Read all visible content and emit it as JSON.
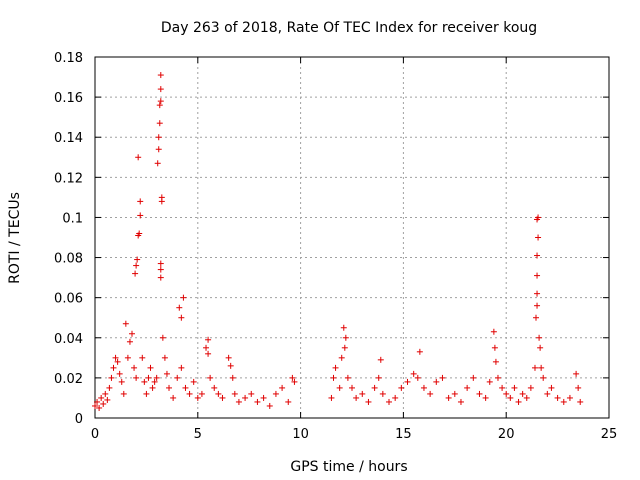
{
  "chart_data": {
    "type": "scatter",
    "title": "Day 263 of 2018, Rate Of TEC Index for receiver koug",
    "xlabel": "GPS time / hours",
    "ylabel": "ROTI / TECUs",
    "xlim": [
      0,
      25
    ],
    "ylim": [
      0,
      0.18
    ],
    "x_ticks": [
      0,
      5,
      10,
      15,
      20,
      25
    ],
    "x_tick_labels": [
      "0",
      "5",
      "10",
      "15",
      "20",
      "25"
    ],
    "y_ticks": [
      0,
      0.02,
      0.04,
      0.06,
      0.08,
      0.1,
      0.12,
      0.14,
      0.16,
      0.18
    ],
    "y_tick_labels": [
      "0",
      "0.02",
      "0.04",
      "0.06",
      "0.08",
      "0.1",
      "0.12",
      "0.14",
      "0.16",
      "0.18"
    ],
    "grid": true,
    "marker": "+",
    "marker_color": "#e00000",
    "series": [
      {
        "name": "ROTI",
        "points": [
          [
            0.0,
            0.006
          ],
          [
            0.1,
            0.008
          ],
          [
            0.2,
            0.005
          ],
          [
            0.3,
            0.01
          ],
          [
            0.4,
            0.007
          ],
          [
            0.5,
            0.012
          ],
          [
            0.6,
            0.009
          ],
          [
            0.7,
            0.015
          ],
          [
            0.8,
            0.02
          ],
          [
            0.9,
            0.025
          ],
          [
            1.0,
            0.03
          ],
          [
            1.1,
            0.028
          ],
          [
            1.2,
            0.022
          ],
          [
            1.3,
            0.018
          ],
          [
            1.4,
            0.012
          ],
          [
            1.5,
            0.047
          ],
          [
            1.6,
            0.03
          ],
          [
            1.7,
            0.038
          ],
          [
            1.8,
            0.042
          ],
          [
            1.9,
            0.025
          ],
          [
            2.0,
            0.02
          ],
          [
            1.95,
            0.072
          ],
          [
            2.0,
            0.076
          ],
          [
            2.05,
            0.079
          ],
          [
            2.1,
            0.091
          ],
          [
            2.15,
            0.092
          ],
          [
            2.2,
            0.101
          ],
          [
            2.2,
            0.108
          ],
          [
            2.1,
            0.13
          ],
          [
            2.3,
            0.03
          ],
          [
            2.4,
            0.018
          ],
          [
            2.5,
            0.012
          ],
          [
            2.6,
            0.02
          ],
          [
            2.7,
            0.025
          ],
          [
            2.8,
            0.015
          ],
          [
            2.9,
            0.018
          ],
          [
            3.0,
            0.02
          ],
          [
            3.05,
            0.127
          ],
          [
            3.1,
            0.134
          ],
          [
            3.1,
            0.14
          ],
          [
            3.15,
            0.147
          ],
          [
            3.15,
            0.156
          ],
          [
            3.2,
            0.158
          ],
          [
            3.2,
            0.164
          ],
          [
            3.2,
            0.171
          ],
          [
            3.25,
            0.11
          ],
          [
            3.25,
            0.108
          ],
          [
            3.2,
            0.077
          ],
          [
            3.2,
            0.074
          ],
          [
            3.2,
            0.07
          ],
          [
            3.3,
            0.04
          ],
          [
            3.4,
            0.03
          ],
          [
            3.5,
            0.022
          ],
          [
            3.6,
            0.015
          ],
          [
            3.8,
            0.01
          ],
          [
            4.0,
            0.02
          ],
          [
            4.1,
            0.055
          ],
          [
            4.2,
            0.05
          ],
          [
            4.3,
            0.06
          ],
          [
            4.2,
            0.025
          ],
          [
            4.4,
            0.015
          ],
          [
            4.6,
            0.012
          ],
          [
            4.8,
            0.018
          ],
          [
            5.0,
            0.01
          ],
          [
            5.2,
            0.012
          ],
          [
            5.4,
            0.035
          ],
          [
            5.5,
            0.039
          ],
          [
            5.5,
            0.032
          ],
          [
            5.6,
            0.02
          ],
          [
            5.8,
            0.015
          ],
          [
            6.0,
            0.012
          ],
          [
            6.2,
            0.01
          ],
          [
            6.5,
            0.03
          ],
          [
            6.6,
            0.026
          ],
          [
            6.7,
            0.02
          ],
          [
            6.8,
            0.012
          ],
          [
            7.0,
            0.008
          ],
          [
            7.3,
            0.01
          ],
          [
            7.6,
            0.012
          ],
          [
            7.9,
            0.008
          ],
          [
            8.2,
            0.01
          ],
          [
            8.5,
            0.006
          ],
          [
            8.8,
            0.012
          ],
          [
            9.1,
            0.015
          ],
          [
            9.4,
            0.008
          ],
          [
            9.6,
            0.02
          ],
          [
            9.7,
            0.018
          ],
          [
            11.5,
            0.01
          ],
          [
            11.6,
            0.02
          ],
          [
            11.7,
            0.025
          ],
          [
            11.9,
            0.015
          ],
          [
            12.0,
            0.03
          ],
          [
            12.1,
            0.045
          ],
          [
            12.2,
            0.04
          ],
          [
            12.15,
            0.035
          ],
          [
            12.3,
            0.02
          ],
          [
            12.5,
            0.015
          ],
          [
            12.7,
            0.01
          ],
          [
            13.0,
            0.012
          ],
          [
            13.3,
            0.008
          ],
          [
            13.6,
            0.015
          ],
          [
            13.8,
            0.02
          ],
          [
            13.9,
            0.029
          ],
          [
            14.0,
            0.012
          ],
          [
            14.3,
            0.008
          ],
          [
            14.6,
            0.01
          ],
          [
            14.9,
            0.015
          ],
          [
            15.2,
            0.018
          ],
          [
            15.5,
            0.022
          ],
          [
            15.7,
            0.02
          ],
          [
            15.8,
            0.033
          ],
          [
            16.0,
            0.015
          ],
          [
            16.3,
            0.012
          ],
          [
            16.6,
            0.018
          ],
          [
            16.9,
            0.02
          ],
          [
            17.2,
            0.01
          ],
          [
            17.5,
            0.012
          ],
          [
            17.8,
            0.008
          ],
          [
            18.1,
            0.015
          ],
          [
            18.4,
            0.02
          ],
          [
            18.7,
            0.012
          ],
          [
            19.0,
            0.01
          ],
          [
            19.2,
            0.018
          ],
          [
            19.4,
            0.043
          ],
          [
            19.45,
            0.035
          ],
          [
            19.5,
            0.028
          ],
          [
            19.6,
            0.02
          ],
          [
            19.8,
            0.015
          ],
          [
            20.0,
            0.012
          ],
          [
            20.2,
            0.01
          ],
          [
            20.4,
            0.015
          ],
          [
            20.6,
            0.008
          ],
          [
            20.8,
            0.012
          ],
          [
            21.0,
            0.01
          ],
          [
            21.2,
            0.015
          ],
          [
            21.4,
            0.025
          ],
          [
            21.45,
            0.05
          ],
          [
            21.5,
            0.056
          ],
          [
            21.5,
            0.062
          ],
          [
            21.5,
            0.071
          ],
          [
            21.5,
            0.081
          ],
          [
            21.55,
            0.09
          ],
          [
            21.5,
            0.099
          ],
          [
            21.55,
            0.1
          ],
          [
            21.6,
            0.04
          ],
          [
            21.65,
            0.035
          ],
          [
            21.7,
            0.025
          ],
          [
            21.8,
            0.02
          ],
          [
            22.0,
            0.012
          ],
          [
            22.2,
            0.015
          ],
          [
            22.5,
            0.01
          ],
          [
            22.8,
            0.008
          ],
          [
            23.1,
            0.01
          ],
          [
            23.4,
            0.022
          ],
          [
            23.5,
            0.015
          ],
          [
            23.6,
            0.008
          ]
        ]
      }
    ]
  }
}
